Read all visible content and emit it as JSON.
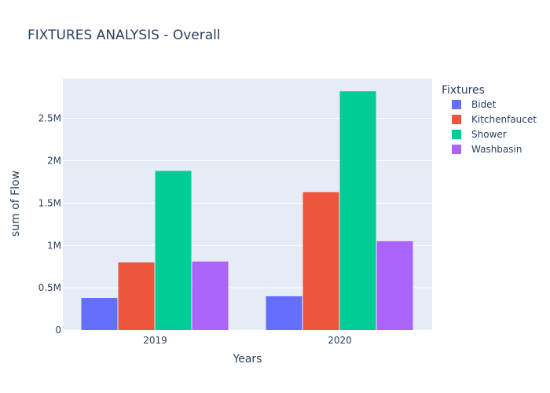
{
  "chart_data": {
    "type": "bar",
    "title": "FIXTURES ANALYSIS - Overall",
    "xlabel": "Years",
    "ylabel": "sum of Flow",
    "categories": [
      "2019",
      "2020"
    ],
    "series": [
      {
        "name": "Bidet",
        "color": "#636efa",
        "values": [
          380000,
          400000
        ]
      },
      {
        "name": "Kitchenfaucet",
        "color": "#ef553b",
        "values": [
          800000,
          1630000
        ]
      },
      {
        "name": "Shower",
        "color": "#00cc96",
        "values": [
          1880000,
          2820000
        ]
      },
      {
        "name": "Washbasin",
        "color": "#ab63fa",
        "values": [
          810000,
          1050000
        ]
      }
    ],
    "ylim": [
      0,
      2970000
    ],
    "yticks": [
      0,
      500000,
      1000000,
      1500000,
      2000000,
      2500000
    ],
    "ytick_labels": [
      "0",
      "0.5M",
      "1M",
      "1.5M",
      "2M",
      "2.5M"
    ],
    "legend_title": "Fixtures",
    "legend_position": "right",
    "plot_background": "#e5ecf6",
    "grid": true
  }
}
